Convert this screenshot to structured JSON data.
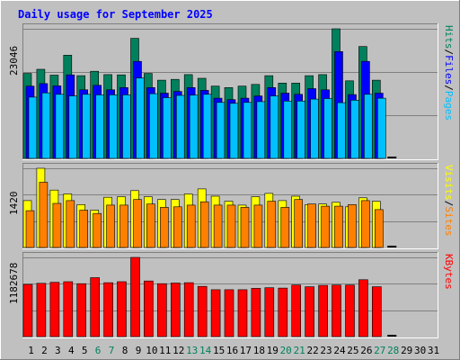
{
  "chart_data": {
    "type": "bar",
    "title": "Daily usage for September 2025",
    "days": [
      "1",
      "2",
      "3",
      "4",
      "5",
      "6",
      "7",
      "8",
      "9",
      "10",
      "11",
      "12",
      "13",
      "14",
      "15",
      "16",
      "17",
      "18",
      "19",
      "20",
      "21",
      "22",
      "23",
      "24",
      "25",
      "26",
      "27",
      "28",
      "29",
      "30",
      "31"
    ],
    "weekend_days": [
      6,
      7,
      13,
      14,
      20,
      21,
      27,
      28
    ],
    "colors": {
      "background": "#c0c0c0",
      "title": "#0000ff",
      "weekend": "#00805c",
      "weekday": "#000000",
      "hits": "#00805c",
      "files": "#0000ff",
      "pages": "#00c0ff",
      "visits": "#ffff00",
      "sites": "#ff8000",
      "kbytes": "#ff0000"
    },
    "panels": [
      {
        "id": "hits-files-pages",
        "ymax_label": "23046",
        "ymax": 23046,
        "legend": [
          {
            "text": "Pages",
            "color": "#00c0ff"
          },
          {
            "text": "/",
            "color": "#000000"
          },
          {
            "text": "Files",
            "color": "#0000ff"
          },
          {
            "text": "/",
            "color": "#000000"
          },
          {
            "text": "Hits",
            "color": "#00805c"
          }
        ],
        "series": [
          {
            "name": "Hits",
            "color": "#00805c",
            "values": [
              15100,
              15850,
              14800,
              18350,
              14700,
              15500,
              14900,
              14850,
              21350,
              15100,
              13900,
              14050,
              14900,
              14250,
              12850,
              12600,
              12850,
              13150,
              14700,
              13400,
              13400,
              14700,
              14900,
              23046,
              13800,
              19900,
              13900,
              0,
              0,
              0,
              0
            ]
          },
          {
            "name": "Files",
            "color": "#0000ff",
            "values": [
              12850,
              13300,
              12900,
              14850,
              12200,
              13000,
              12200,
              12600,
              17250,
              12600,
              11600,
              11900,
              12600,
              12100,
              10700,
              10450,
              10700,
              11100,
              12600,
              11600,
              11400,
              12400,
              12200,
              19000,
              11350,
              17250,
              11600,
              0,
              0,
              0,
              0
            ]
          },
          {
            "name": "Pages",
            "color": "#00c0ff",
            "values": [
              10900,
              11650,
              11400,
              11100,
              11400,
              11300,
              11300,
              11300,
              14300,
              11500,
              10800,
              11200,
              11250,
              11400,
              9950,
              9800,
              9950,
              10100,
              11100,
              10200,
              10200,
              10550,
              10650,
              9900,
              10350,
              11400,
              10700,
              0,
              0,
              0,
              0
            ]
          }
        ]
      },
      {
        "id": "visits-sites",
        "ymax_label": "1420",
        "ymax": 1420,
        "legend": [
          {
            "text": "Sites",
            "color": "#ff8000"
          },
          {
            "text": "/",
            "color": "#000000"
          },
          {
            "text": "Visits",
            "color": "#ffff00"
          }
        ],
        "series": [
          {
            "name": "Visits",
            "color": "#ffff00",
            "values": [
              840,
              1420,
              1030,
              960,
              770,
              670,
              900,
              910,
              1020,
              910,
              860,
              860,
              960,
              1050,
              920,
              830,
              760,
              910,
              970,
              840,
              920,
              770,
              780,
              810,
              730,
              890,
              830,
              0,
              0,
              0,
              0
            ]
          },
          {
            "name": "Sites",
            "color": "#ff8000",
            "values": [
              660,
              1170,
              790,
              840,
              670,
              610,
              760,
              760,
              860,
              780,
              720,
              730,
              760,
              820,
              760,
              760,
              720,
              760,
              830,
              720,
              860,
              780,
              740,
              740,
              770,
              840,
              680,
              0,
              0,
              0,
              0
            ]
          }
        ]
      },
      {
        "id": "kbytes",
        "ymax_label": "1182678",
        "ymax": 1182678,
        "legend": [
          {
            "text": "KBytes",
            "color": "#ff0000"
          }
        ],
        "series": [
          {
            "name": "KBytes",
            "color": "#ff0000",
            "values": [
              780000,
              795000,
              810000,
              820000,
              790000,
              880000,
              805000,
              820000,
              1182678,
              830000,
              790000,
              800000,
              805000,
              750000,
              700000,
              700000,
              700000,
              720000,
              730000,
              725000,
              770000,
              745000,
              765000,
              770000,
              770000,
              850000,
              745000,
              0,
              0,
              0,
              0
            ]
          }
        ]
      }
    ]
  }
}
